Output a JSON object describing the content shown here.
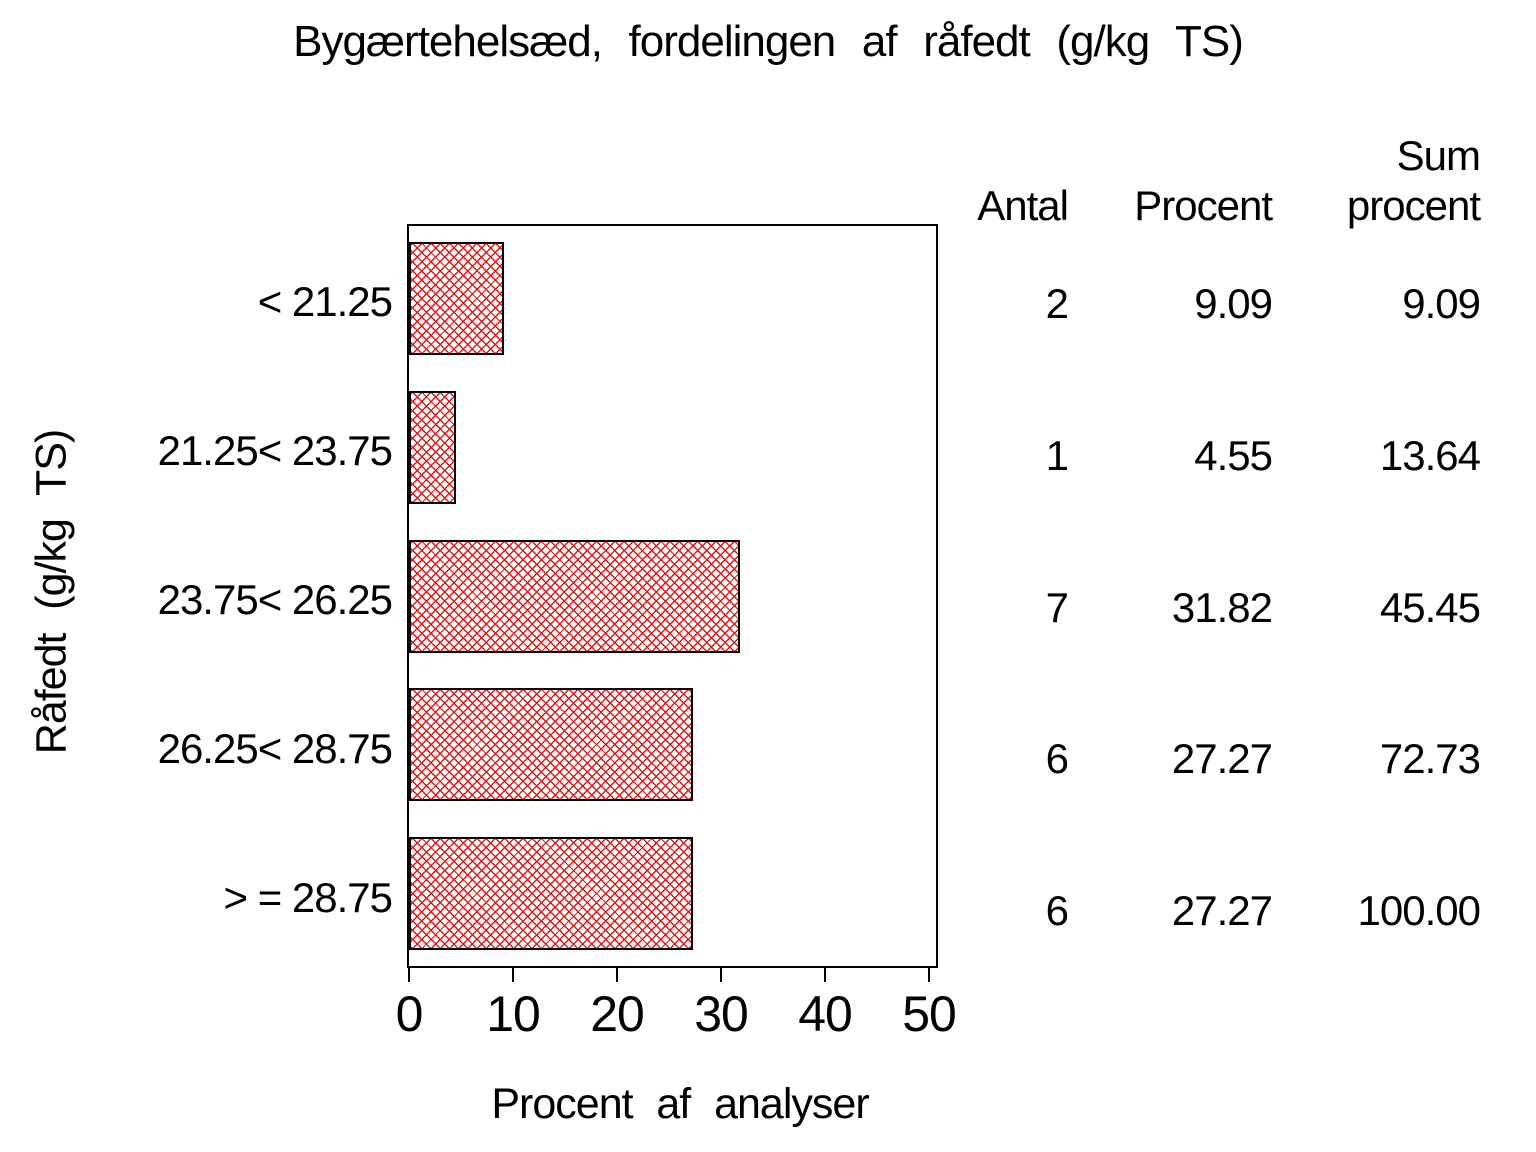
{
  "colors": {
    "hatch_red": "#e01818",
    "frame_black": "#000000",
    "background": "#ffffff"
  },
  "chart_data": {
    "type": "bar",
    "orientation": "horizontal",
    "title": "Bygærtehelsæd, fordelingen af råfedt (g/kg TS)",
    "xlabel": "Procent af analyser",
    "ylabel": "Råfedt (g/kg TS)",
    "xlim": [
      0,
      50
    ],
    "xticks": [
      "0",
      "10",
      "20",
      "30",
      "40",
      "50"
    ],
    "grid": "off",
    "bar_style": "red-crosshatch-with-black-outline",
    "categories": [
      "< 21.25",
      "21.25< 23.75",
      "23.75< 26.25",
      "26.25< 28.75",
      "> = 28.75"
    ],
    "values": [
      9.09,
      4.55,
      31.82,
      27.27,
      27.27
    ],
    "table": {
      "columns": [
        "Antal",
        "Procent",
        "Sum procent"
      ],
      "columns_display": [
        "Antal",
        "Procent",
        "Sum\nprocent"
      ],
      "rows": [
        [
          "2",
          "9.09",
          "9.09"
        ],
        [
          "1",
          "4.55",
          "13.64"
        ],
        [
          "7",
          "31.82",
          "45.45"
        ],
        [
          "6",
          "27.27",
          "72.73"
        ],
        [
          "6",
          "27.27",
          "100.00"
        ]
      ]
    }
  }
}
